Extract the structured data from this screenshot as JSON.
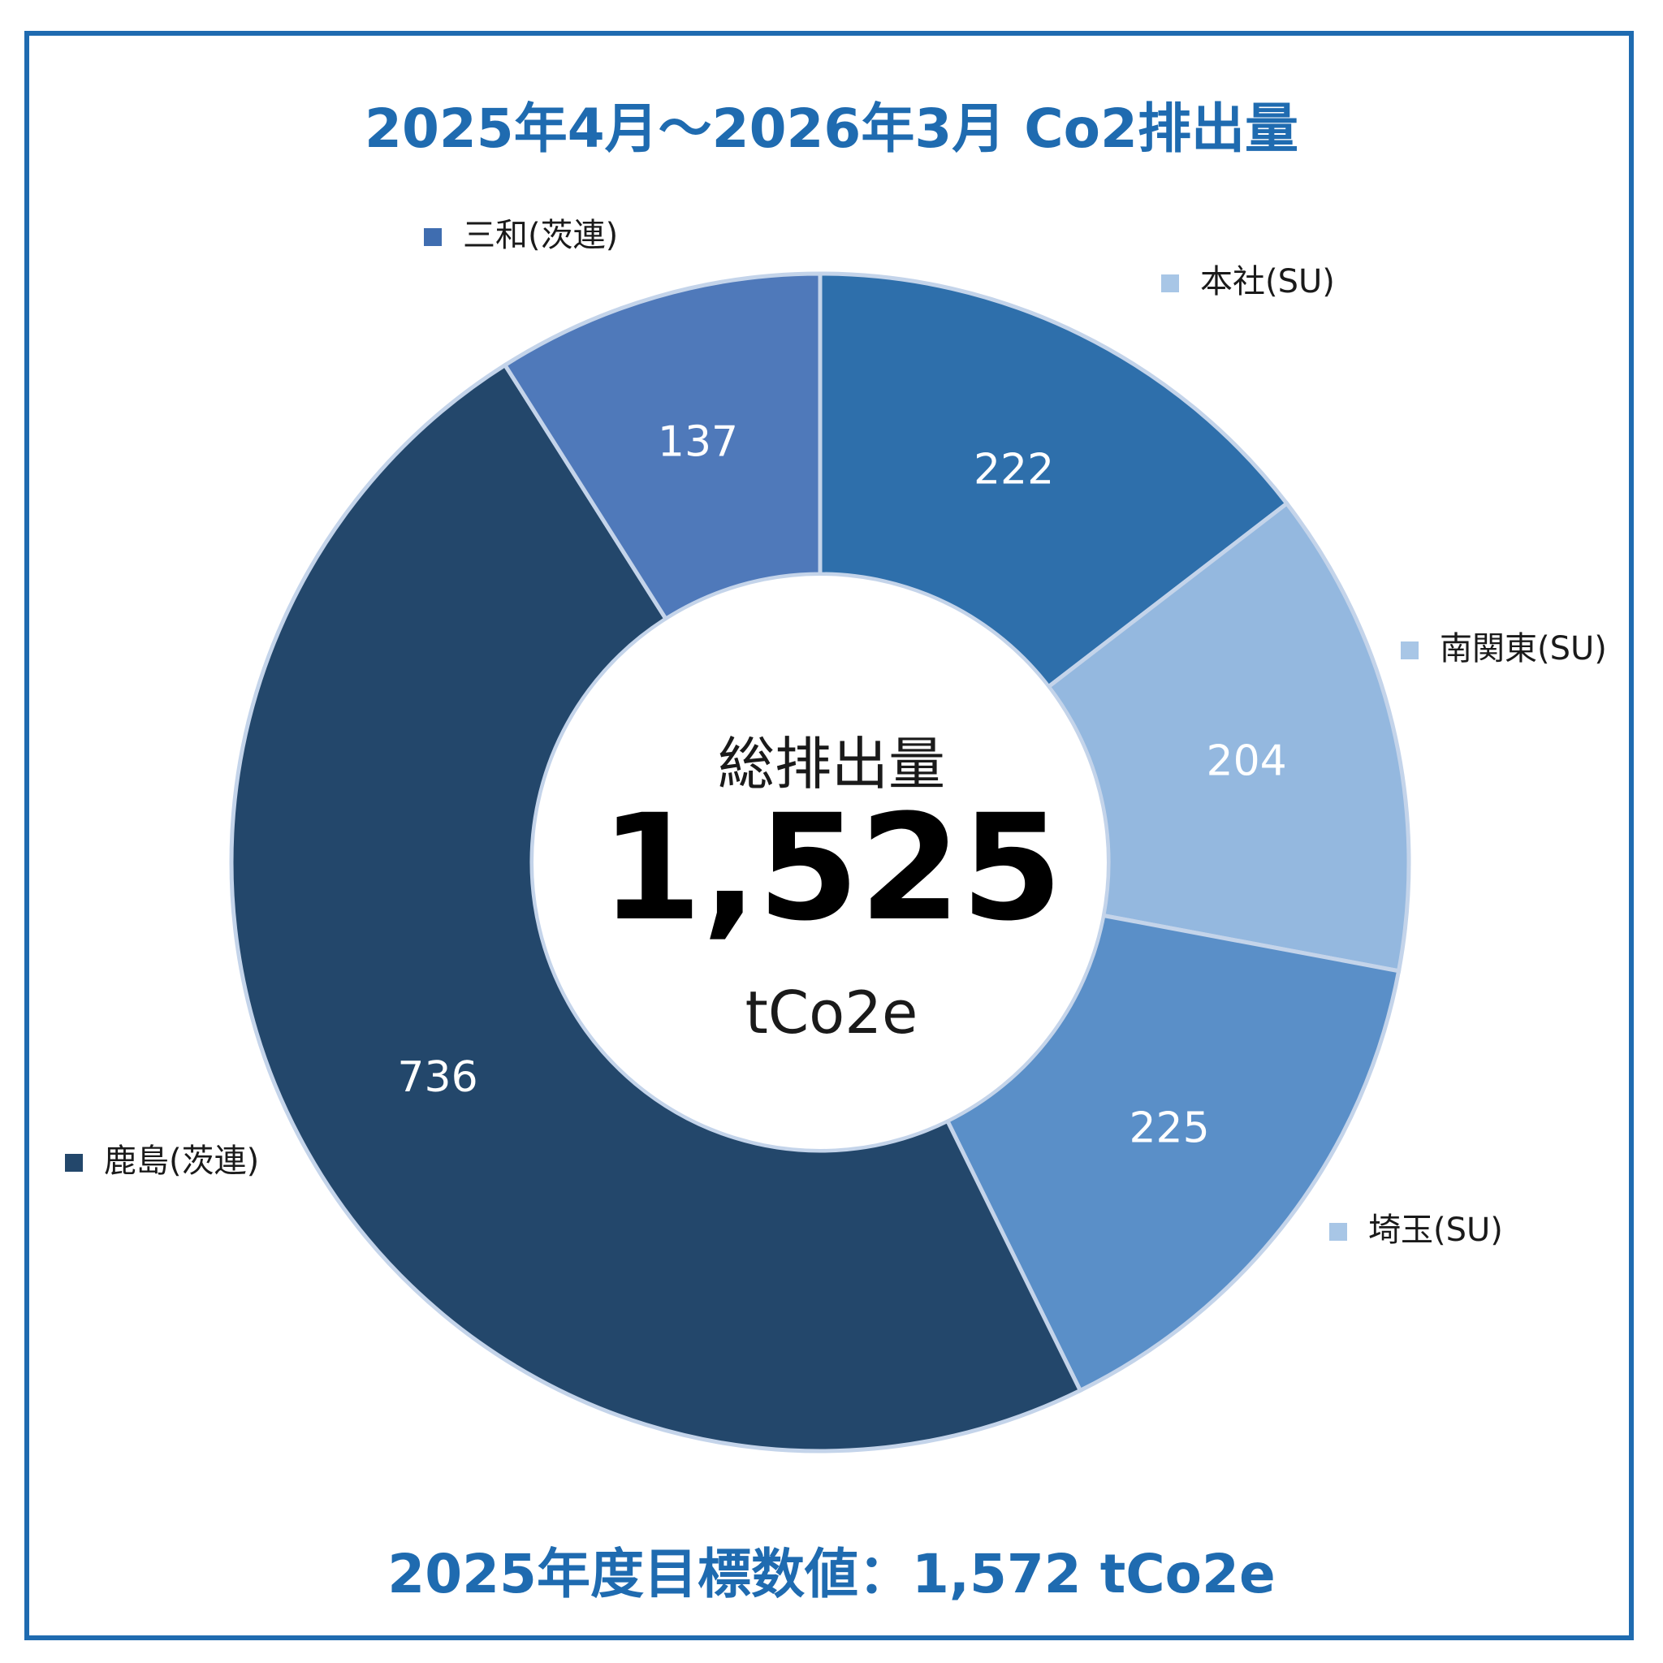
{
  "title": "2025年4月～2026年3月 Co2排出量",
  "target_text": "2025年度目標数値：1,572 tCo2e",
  "center": {
    "label": "総排出量",
    "total": "1,525",
    "unit": "tCo2e"
  },
  "chart_data": {
    "type": "pie",
    "title": "2025年4月～2026年3月 Co2排出量",
    "categories": [
      "本社(SU)",
      "南関東(SU)",
      "埼玉(SU)",
      "鹿島(茨連)",
      "三和(茨連)"
    ],
    "values": [
      222,
      204,
      225,
      736,
      137
    ],
    "colors": [
      "#2e6fab",
      "#94b8df",
      "#5a8fc8",
      "#23476b",
      "#4f79ba"
    ],
    "legend_colors": [
      "#a8c6e6",
      "#a8c6e6",
      "#a8c6e6",
      "#23476b",
      "#3f6db0"
    ],
    "total": 1525,
    "unit": "tCo2e",
    "donut": true,
    "legend_placement": "around"
  }
}
